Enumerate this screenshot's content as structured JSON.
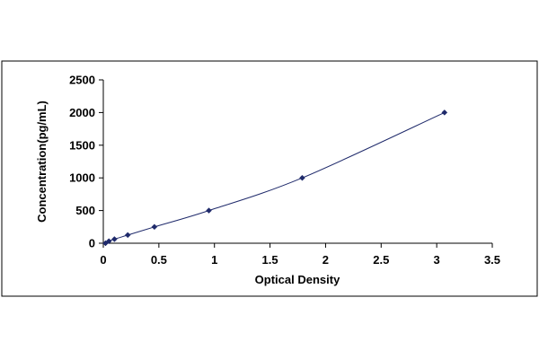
{
  "chart_data": {
    "type": "scatter",
    "title": "",
    "xlabel": "Optical Density",
    "ylabel": "Concentration(pg/mL)",
    "xlim": [
      0,
      3.5
    ],
    "ylim": [
      0,
      2500
    ],
    "x_ticks": [
      "0",
      "0.5",
      "1",
      "1.5",
      "2",
      "2.5",
      "3",
      "3.5"
    ],
    "y_ticks": [
      "0",
      "500",
      "1000",
      "1500",
      "2000",
      "2500"
    ],
    "grid": false,
    "legend": "none",
    "series": [
      {
        "x": [
          0.02,
          0.05,
          0.1,
          0.22,
          0.46,
          0.95,
          1.79,
          3.07
        ],
        "y": [
          0,
          31.25,
          62.5,
          125,
          250,
          500,
          1000,
          2000
        ],
        "marker": "diamond",
        "line": "smooth",
        "color": "#1f2a6b"
      }
    ]
  }
}
